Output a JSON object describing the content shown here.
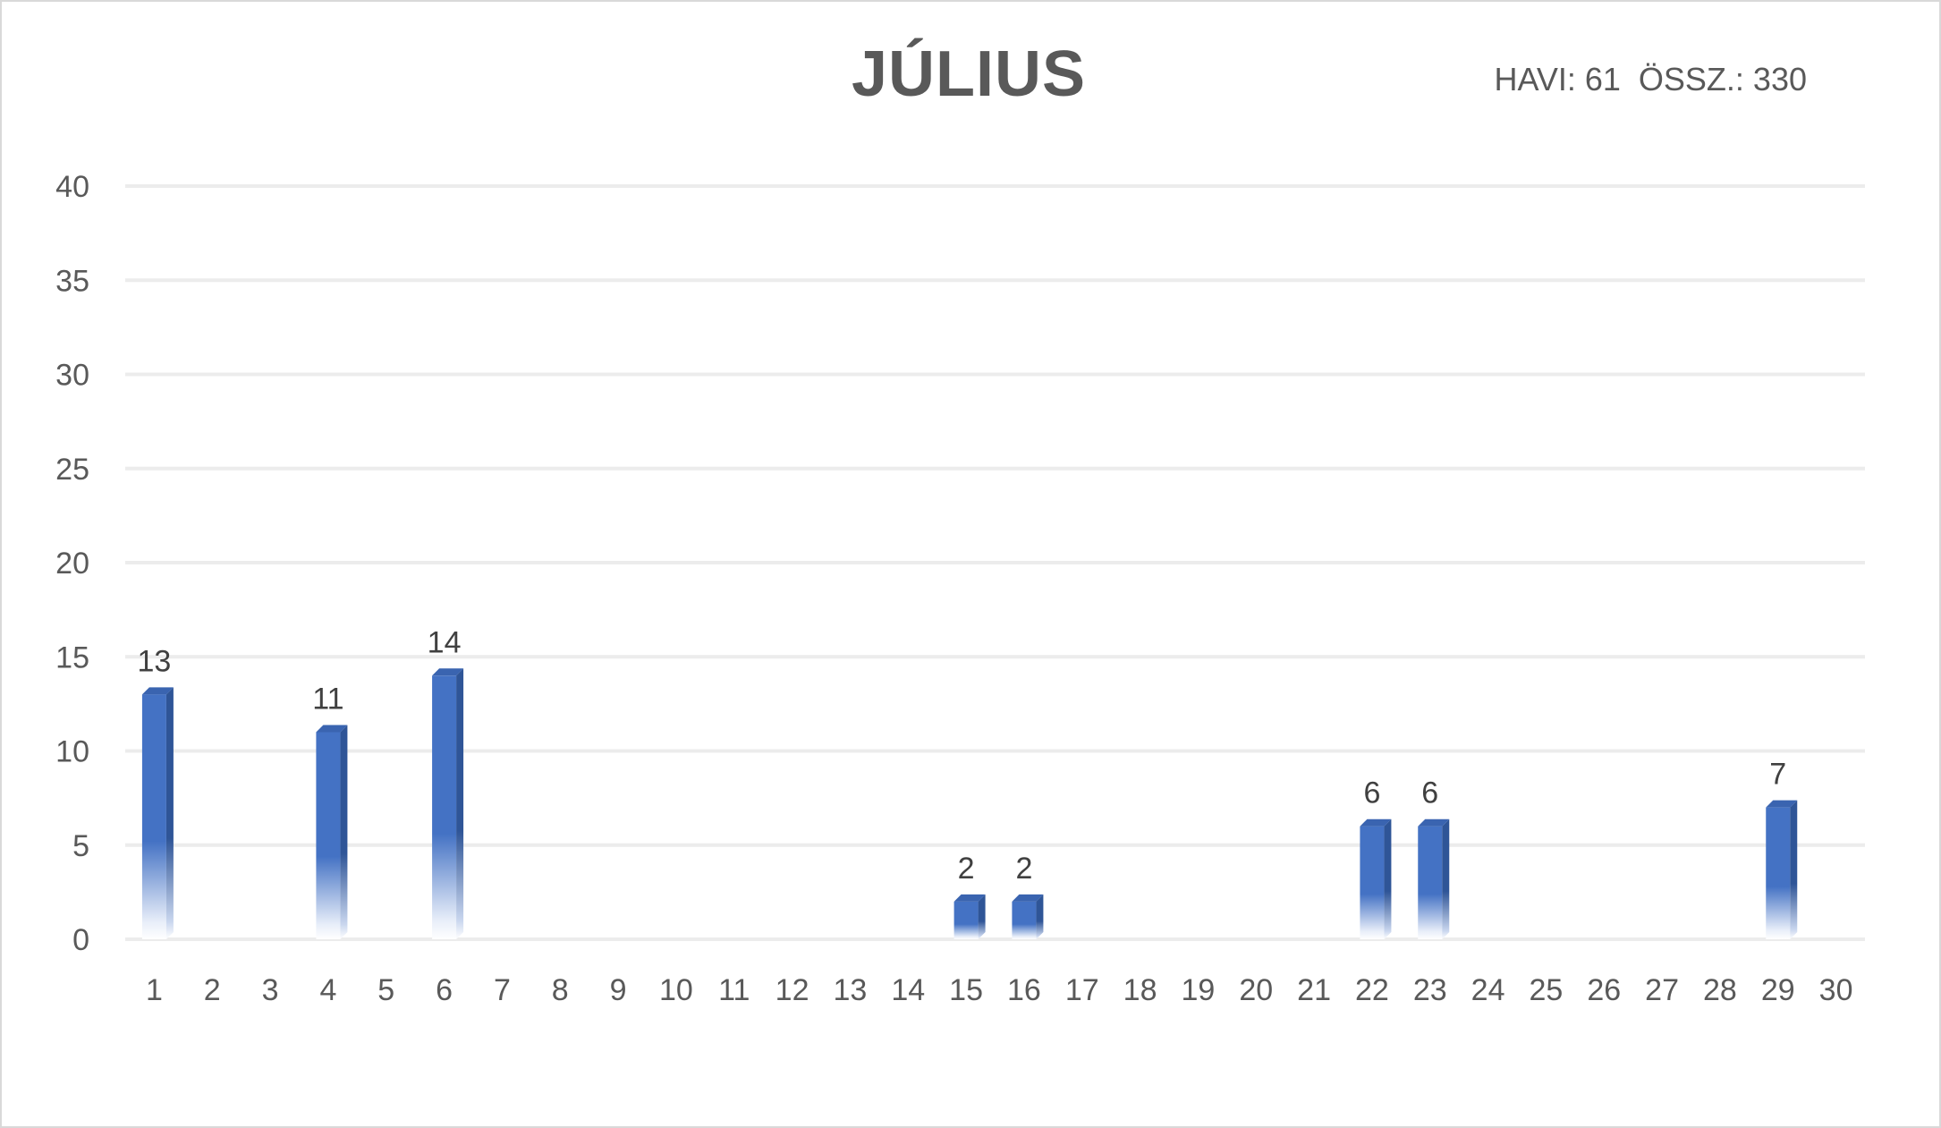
{
  "chart_data": {
    "type": "bar",
    "title": "JÚLIUS",
    "subtitle": "HAVI: 61  ÖSSZ.: 330",
    "xlabel": "",
    "ylabel": "",
    "ylim": [
      0,
      40
    ],
    "yticks": [
      "0",
      "5",
      "10",
      "15",
      "20",
      "25",
      "30",
      "35",
      "40"
    ],
    "grid": true,
    "categories": [
      "1",
      "2",
      "3",
      "4",
      "5",
      "6",
      "7",
      "8",
      "9",
      "10",
      "11",
      "12",
      "13",
      "14",
      "15",
      "16",
      "17",
      "18",
      "19",
      "20",
      "21",
      "22",
      "23",
      "24",
      "25",
      "26",
      "27",
      "28",
      "29",
      "30"
    ],
    "values": [
      13,
      0,
      0,
      11,
      0,
      14,
      0,
      0,
      0,
      0,
      0,
      0,
      0,
      0,
      2,
      2,
      0,
      0,
      0,
      0,
      0,
      6,
      6,
      0,
      0,
      0,
      0,
      0,
      7,
      0
    ],
    "data_labels": [
      "13",
      "",
      "",
      "11",
      "",
      "14",
      "",
      "",
      "",
      "",
      "",
      "",
      "",
      "",
      "2",
      "2",
      "",
      "",
      "",
      "",
      "",
      "6",
      "6",
      "",
      "",
      "",
      "",
      "",
      "7",
      ""
    ],
    "colors": {
      "bar_front": "#4472c4",
      "bar_side": "#2f5597",
      "bar_top": "#3a64b0",
      "grid": "#ececec",
      "text": "#595959"
    }
  }
}
